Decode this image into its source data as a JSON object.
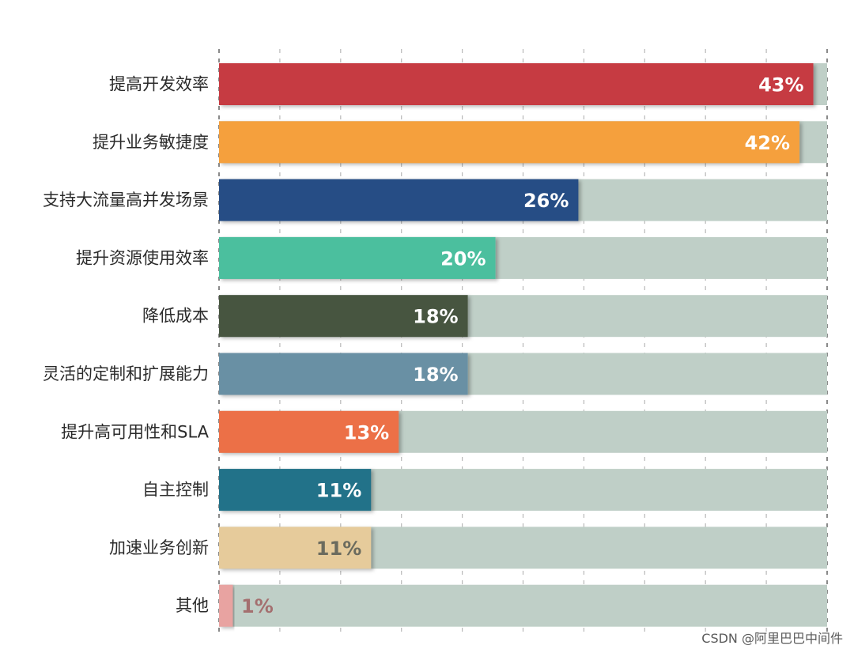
{
  "chart_data": {
    "type": "bar",
    "orientation": "horizontal",
    "categories": [
      "提高开发效率",
      "提升业务敏捷度",
      "支持大流量高并发场景",
      "提升资源使用效率",
      "降低成本",
      "灵活的定制和扩展能力",
      "提升高可用性和SLA",
      "自主控制",
      "加速业务创新",
      "其他"
    ],
    "values": [
      43,
      42,
      26,
      20,
      18,
      18,
      13,
      11,
      11,
      1
    ],
    "value_labels": [
      "43%",
      "42%",
      "26%",
      "20%",
      "18%",
      "18%",
      "13%",
      "11%",
      "11%",
      "1%"
    ],
    "bar_colors": [
      "#c63a42",
      "#f5a03e",
      "#284d85",
      "#4bbf9e",
      "#465540",
      "#6990a4",
      "#ec7047",
      "#227289",
      "#e6cb9b",
      "#e8a3a1"
    ],
    "value_label_colors": [
      "#ffffff",
      "#ffffff",
      "#ffffff",
      "#ffffff",
      "#ffffff",
      "#ffffff",
      "#ffffff",
      "#ffffff",
      "#6b6b5e",
      "#a46f6f"
    ],
    "track_color": "#bfcfc7",
    "xlim": [
      0,
      45
    ],
    "grid": true,
    "grid_style": "dashed-vertical",
    "legend": "none"
  },
  "watermark": "CSDN @阿里巴巴中间件"
}
